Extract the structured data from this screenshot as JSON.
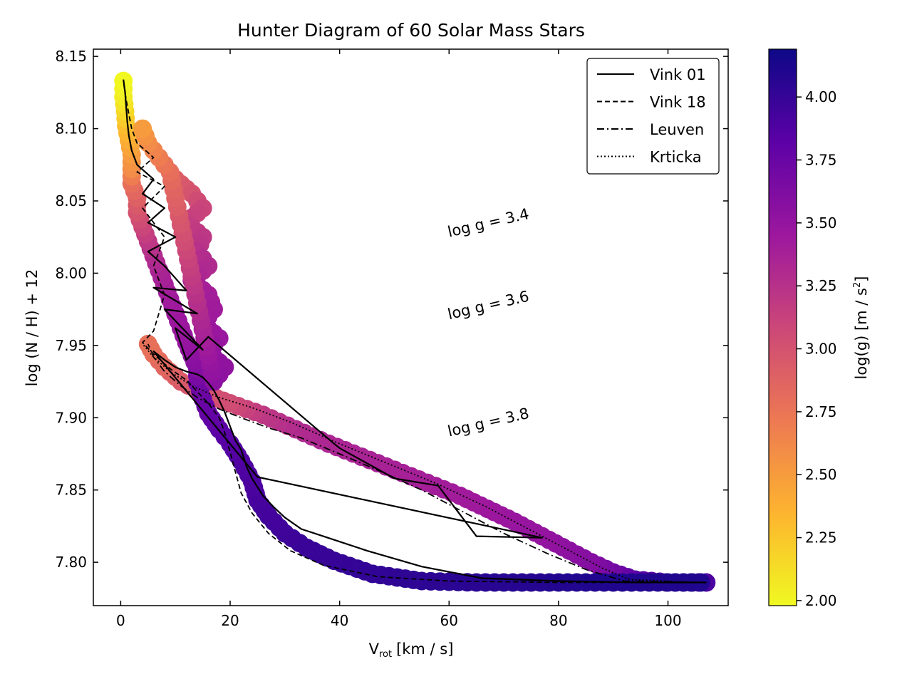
{
  "chart_data": {
    "type": "scatter",
    "title": "Hunter Diagram of 60 Solar Mass Stars",
    "xlabel": "V",
    "xlabel_sub": "rot",
    "xlabel_unit": "[km / s]",
    "ylabel": "log (N / H) + 12",
    "xlim": [
      -5,
      111
    ],
    "ylim": [
      7.77,
      8.155
    ],
    "xticks": [
      0,
      20,
      40,
      60,
      80,
      100
    ],
    "yticks": [
      7.8,
      7.85,
      7.9,
      7.95,
      8.0,
      8.05,
      8.1,
      8.15
    ],
    "ytick_labels": [
      "7.80",
      "7.85",
      "7.90",
      "7.95",
      "8.00",
      "8.05",
      "8.10",
      "8.15"
    ],
    "grid": false,
    "legend_position": "top-right",
    "legend": [
      {
        "name": "Vink 01",
        "dash": "solid"
      },
      {
        "name": "Vink 18",
        "dash": "dashed"
      },
      {
        "name": "Leuven",
        "dash": "dashdot"
      },
      {
        "name": "Krticka",
        "dash": "dotted"
      }
    ],
    "annotations": [
      {
        "text": "log g = 3.4",
        "x": 60,
        "y": 8.025
      },
      {
        "text": "log g = 3.6",
        "x": 60,
        "y": 7.968
      },
      {
        "text": "log g = 3.8",
        "x": 60,
        "y": 7.887
      }
    ],
    "colorbar": {
      "label": "log(g) [m / s",
      "label_sup": "2",
      "label_end": "]",
      "range": [
        1.98,
        4.19
      ],
      "ticks": [
        2.0,
        2.25,
        2.5,
        2.75,
        3.0,
        3.25,
        3.5,
        3.75,
        4.0
      ],
      "tick_labels": [
        "2.00",
        "2.25",
        "2.50",
        "2.75",
        "3.00",
        "3.25",
        "3.50",
        "3.75",
        "4.00"
      ],
      "colormap": "plasma"
    },
    "colormap_stops": [
      "#f0f921",
      "#fdb42f",
      "#ed7953",
      "#cc4778",
      "#9c179e",
      "#5c01a6",
      "#0d0887"
    ],
    "series": [
      {
        "name": "Vink 01",
        "dash": "solid",
        "points": [
          [
            107,
            7.786
          ],
          [
            95,
            7.786
          ],
          [
            80,
            7.787
          ],
          [
            66,
            7.789
          ],
          [
            55,
            7.797
          ],
          [
            45,
            7.808
          ],
          [
            37,
            7.818
          ],
          [
            33,
            7.823
          ],
          [
            30,
            7.831
          ],
          [
            28,
            7.838
          ],
          [
            26,
            7.846
          ],
          [
            25,
            7.852
          ],
          [
            24,
            7.858
          ],
          [
            23,
            7.866
          ],
          [
            22,
            7.878
          ],
          [
            21,
            7.884
          ],
          [
            20,
            7.894
          ],
          [
            19,
            7.904
          ],
          [
            18,
            7.912
          ],
          [
            17,
            7.919
          ],
          [
            16,
            7.924
          ],
          [
            15,
            7.928
          ],
          [
            14,
            7.93
          ],
          [
            12,
            7.932
          ],
          [
            10,
            7.935
          ],
          [
            8,
            7.94
          ],
          [
            6,
            7.946
          ],
          [
            25,
            7.859
          ],
          [
            77,
            7.817
          ],
          [
            65,
            7.818
          ],
          [
            58,
            7.853
          ],
          [
            50,
            7.858
          ],
          [
            40,
            7.879
          ],
          [
            39,
            7.882
          ],
          [
            16,
            7.956
          ],
          [
            12,
            7.94
          ],
          [
            10,
            7.962
          ],
          [
            15,
            7.947
          ],
          [
            8,
            7.975
          ],
          [
            14,
            7.972
          ],
          [
            6,
            7.99
          ],
          [
            12,
            7.988
          ],
          [
            8,
            8.005
          ],
          [
            5,
            8.015
          ],
          [
            10,
            8.025
          ],
          [
            5,
            8.035
          ],
          [
            8,
            8.045
          ],
          [
            4,
            8.055
          ],
          [
            6,
            8.065
          ],
          [
            3,
            8.075
          ],
          [
            2,
            8.085
          ],
          [
            1.5,
            8.095
          ],
          [
            1.2,
            8.105
          ],
          [
            1,
            8.115
          ],
          [
            0.8,
            8.125
          ],
          [
            0.5,
            8.134
          ]
        ]
      },
      {
        "name": "Vink 18",
        "dash": "dashed",
        "points": [
          [
            107,
            7.786
          ],
          [
            80,
            7.786
          ],
          [
            60,
            7.787
          ],
          [
            47,
            7.79
          ],
          [
            37,
            7.798
          ],
          [
            31,
            7.808
          ],
          [
            27,
            7.82
          ],
          [
            24,
            7.834
          ],
          [
            22,
            7.848
          ],
          [
            21,
            7.862
          ],
          [
            20,
            7.876
          ],
          [
            19,
            7.89
          ],
          [
            18,
            7.9
          ],
          [
            16,
            7.91
          ],
          [
            14,
            7.918
          ],
          [
            12,
            7.926
          ],
          [
            9,
            7.934
          ],
          [
            6,
            7.944
          ],
          [
            4,
            7.952
          ],
          [
            6,
            7.96
          ],
          [
            8,
            7.985
          ],
          [
            6,
            8.005
          ],
          [
            8,
            8.025
          ],
          [
            4,
            8.045
          ],
          [
            8,
            8.06
          ],
          [
            3,
            8.07
          ],
          [
            6,
            8.08
          ],
          [
            3,
            8.09
          ],
          [
            2,
            8.1
          ],
          [
            1.5,
            8.11
          ],
          [
            1,
            8.12
          ],
          [
            0.6,
            8.13
          ]
        ]
      },
      {
        "name": "Leuven",
        "dash": "dashdot",
        "points": [
          [
            106,
            7.786
          ],
          [
            92,
            7.787
          ],
          [
            85,
            7.795
          ],
          [
            78,
            7.806
          ],
          [
            70,
            7.82
          ],
          [
            62,
            7.836
          ],
          [
            55,
            7.85
          ],
          [
            48,
            7.862
          ],
          [
            40,
            7.875
          ],
          [
            33,
            7.886
          ],
          [
            27,
            7.893
          ],
          [
            22,
            7.9
          ],
          [
            18,
            7.906
          ],
          [
            14,
            7.914
          ],
          [
            11,
            7.922
          ],
          [
            8,
            7.932
          ],
          [
            6,
            7.942
          ],
          [
            5,
            7.951
          ]
        ]
      },
      {
        "name": "Krticka",
        "dash": "dotted",
        "points": [
          [
            106,
            7.786
          ],
          [
            93,
            7.788
          ],
          [
            88,
            7.796
          ],
          [
            82,
            7.808
          ],
          [
            75,
            7.822
          ],
          [
            67,
            7.838
          ],
          [
            58,
            7.854
          ],
          [
            49,
            7.868
          ],
          [
            40,
            7.882
          ],
          [
            31,
            7.897
          ],
          [
            24,
            7.907
          ],
          [
            18,
            7.914
          ],
          [
            13,
            7.922
          ],
          [
            9,
            7.932
          ],
          [
            6,
            7.942
          ],
          [
            4,
            7.951
          ]
        ]
      }
    ],
    "marker_tracks": [
      {
        "name": "upper track",
        "points": [
          [
            107,
            7.786,
            3.9
          ],
          [
            100,
            7.786,
            3.88
          ],
          [
            94,
            7.788,
            3.85
          ],
          [
            90,
            7.793,
            3.7
          ],
          [
            86,
            7.8,
            3.6
          ],
          [
            82,
            7.808,
            3.55
          ],
          [
            77,
            7.818,
            3.5
          ],
          [
            72,
            7.828,
            3.48
          ],
          [
            67,
            7.837,
            3.45
          ],
          [
            62,
            7.846,
            3.42
          ],
          [
            56,
            7.855,
            3.4
          ],
          [
            50,
            7.864,
            3.38
          ],
          [
            44,
            7.873,
            3.36
          ],
          [
            38,
            7.882,
            3.34
          ],
          [
            32,
            7.892,
            3.3
          ],
          [
            26,
            7.902,
            3.2
          ],
          [
            20,
            7.91,
            3.05
          ],
          [
            15,
            7.917,
            3.0
          ],
          [
            11,
            7.925,
            2.95
          ],
          [
            8,
            7.935,
            2.85
          ],
          [
            6,
            7.944,
            2.8
          ],
          [
            5,
            7.951,
            2.78
          ]
        ]
      },
      {
        "name": "lower track",
        "points": [
          [
            106,
            7.786,
            4.1
          ],
          [
            95,
            7.786,
            4.1
          ],
          [
            85,
            7.786,
            4.1
          ],
          [
            75,
            7.786,
            4.08
          ],
          [
            65,
            7.786,
            4.06
          ],
          [
            55,
            7.787,
            4.04
          ],
          [
            46,
            7.792,
            4.02
          ],
          [
            39,
            7.801,
            4.0
          ],
          [
            34,
            7.81,
            3.98
          ],
          [
            30,
            7.82,
            3.96
          ],
          [
            27,
            7.832,
            3.94
          ],
          [
            25,
            7.843,
            3.92
          ],
          [
            24,
            7.856,
            3.9
          ],
          [
            22,
            7.87,
            3.88
          ],
          [
            20,
            7.882,
            3.85
          ],
          [
            18,
            7.892,
            3.82
          ],
          [
            16,
            7.903,
            3.78
          ],
          [
            15,
            7.913,
            3.75
          ],
          [
            14,
            7.924,
            3.7
          ],
          [
            14,
            7.934,
            3.6
          ],
          [
            13,
            7.943,
            3.55
          ],
          [
            12,
            7.952,
            3.5
          ],
          [
            11,
            7.962,
            3.47
          ],
          [
            10,
            7.972,
            3.45
          ],
          [
            9,
            7.982,
            3.43
          ],
          [
            8,
            7.992,
            3.4
          ],
          [
            7,
            8.002,
            3.35
          ],
          [
            6,
            8.012,
            3.3
          ],
          [
            5,
            8.022,
            3.2
          ],
          [
            4,
            8.032,
            3.1
          ],
          [
            3,
            8.042,
            3.0
          ],
          [
            3,
            8.052,
            2.9
          ],
          [
            2,
            8.062,
            2.8
          ],
          [
            2,
            8.072,
            2.6
          ],
          [
            2,
            8.082,
            2.5
          ],
          [
            1.5,
            8.092,
            2.4
          ],
          [
            1,
            8.102,
            2.3
          ],
          [
            0.8,
            8.112,
            2.15
          ],
          [
            0.5,
            8.122,
            2.05
          ],
          [
            0.5,
            8.133,
            1.99
          ]
        ]
      },
      {
        "name": "noisy band",
        "points": [
          [
            10,
            8.065,
            2.9
          ],
          [
            13,
            8.055,
            3.0
          ],
          [
            15,
            8.045,
            3.1
          ],
          [
            12,
            8.035,
            3.15
          ],
          [
            15,
            8.025,
            3.2
          ],
          [
            14,
            8.015,
            3.25
          ],
          [
            16,
            8.005,
            3.3
          ],
          [
            13,
            7.995,
            3.35
          ],
          [
            16,
            7.985,
            3.4
          ],
          [
            17,
            7.975,
            3.42
          ],
          [
            15,
            7.965,
            3.45
          ],
          [
            18,
            7.955,
            3.47
          ],
          [
            16,
            7.945,
            3.5
          ],
          [
            19,
            7.935,
            3.52
          ],
          [
            17,
            7.925,
            3.55
          ],
          [
            9,
            8.07,
            2.8
          ],
          [
            7,
            8.08,
            2.7
          ],
          [
            5,
            8.09,
            2.6
          ],
          [
            4,
            8.1,
            2.5
          ]
        ]
      }
    ]
  }
}
